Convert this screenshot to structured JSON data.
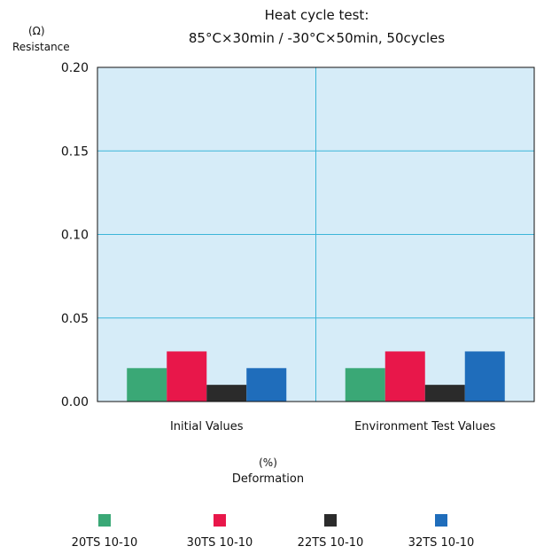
{
  "chart_data": {
    "type": "bar",
    "title": "Heat cycle test:",
    "subtitle": "85°C×30min / -30°C×50min, 50cycles",
    "ylabel": "Resistance",
    "yunit": "(Ω)",
    "xlabel": "Deformation",
    "xunit": "(%)",
    "categories": [
      "Initial Values",
      "Environment Test Values"
    ],
    "ylim": [
      0,
      0.2
    ],
    "yticks": [
      "0.00",
      "0.05",
      "0.10",
      "0.15",
      "0.20"
    ],
    "grid": true,
    "legend_position": "bottom",
    "series": [
      {
        "name": "20TS 10-10",
        "color": "#3aa876",
        "values": [
          0.02,
          0.02
        ]
      },
      {
        "name": "30TS 10-10",
        "color": "#e8174a",
        "values": [
          0.03,
          0.03
        ]
      },
      {
        "name": "22TS 10-10",
        "color": "#2b2b2b",
        "values": [
          0.01,
          0.01
        ]
      },
      {
        "name": "32TS 10-10",
        "color": "#1f6dbb",
        "values": [
          0.02,
          0.03
        ]
      }
    ],
    "plot_background": "#d6ecf8",
    "grid_color": "#3bb5d8"
  }
}
